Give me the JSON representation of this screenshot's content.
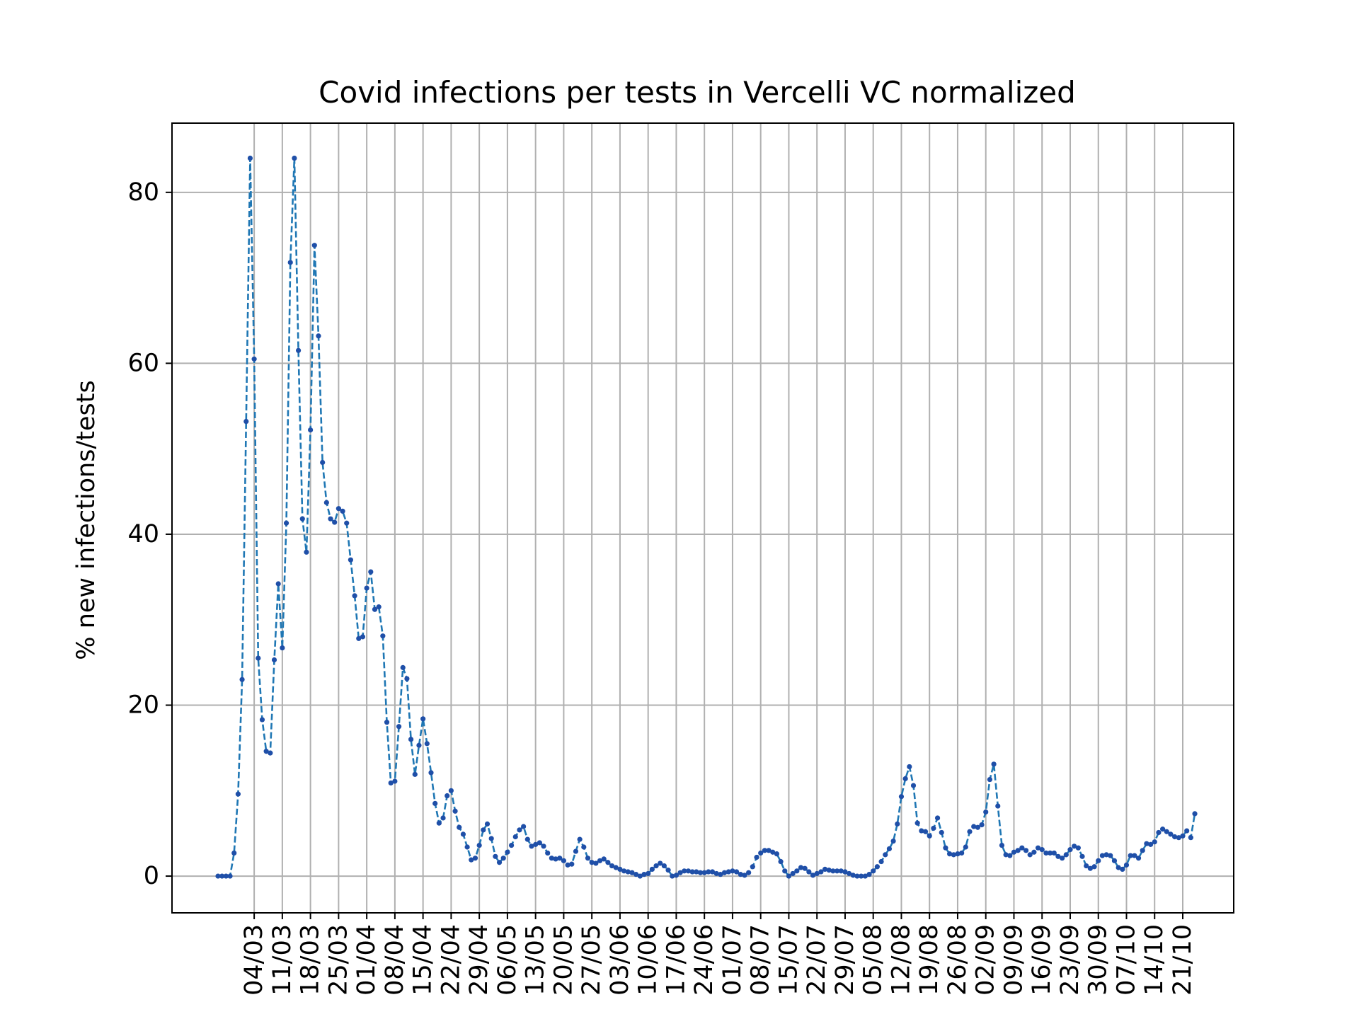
{
  "chart_data": {
    "type": "line",
    "title": "Covid infections per tests in Vercelli VC normalized",
    "xlabel": "",
    "ylabel": "% new infections/tests",
    "start_date": "2020-02-24",
    "ylim": [
      -4.3,
      88.1
    ],
    "yticks": [
      0,
      20,
      40,
      60,
      80
    ],
    "xtick_labels": [
      "04/03",
      "11/03",
      "18/03",
      "25/03",
      "01/04",
      "08/04",
      "15/04",
      "22/04",
      "29/04",
      "06/05",
      "13/05",
      "20/05",
      "27/05",
      "03/06",
      "10/06",
      "17/06",
      "24/06",
      "01/07",
      "08/07",
      "15/07",
      "22/07",
      "29/07",
      "05/08",
      "12/08",
      "19/08",
      "26/08",
      "02/09",
      "09/09",
      "16/09",
      "23/09",
      "30/09",
      "07/10",
      "14/10",
      "21/10"
    ],
    "grid": true,
    "line_style": "dashed",
    "marker": "dot",
    "colors": {
      "line": "#1f77b4",
      "marker": "#1f4fa8",
      "grid": "#b0b0b0"
    },
    "series": [
      {
        "values": [
          0,
          0,
          0,
          0,
          2.7,
          9.6,
          23,
          53.2,
          84,
          60.5,
          25.5,
          18.3,
          14.6,
          14.4,
          25.3,
          34.2,
          26.7,
          41.3,
          71.8,
          84,
          61.5,
          41.8,
          37.9,
          52.2,
          73.8,
          63.2,
          48.4,
          43.7,
          41.8,
          41.4,
          43,
          42.7,
          41.3,
          37,
          32.8,
          27.8,
          28,
          33.7,
          35.6,
          31.2,
          31.5,
          28.1,
          18,
          10.9,
          11.1,
          17.5,
          24.4,
          23.1,
          16,
          11.9,
          15.3,
          18.4,
          15.5,
          12.1,
          8.5,
          6.2,
          6.8,
          9.4,
          10,
          7.6,
          5.7,
          4.9,
          3.4,
          1.9,
          2.1,
          3.6,
          5.4,
          6.1,
          4.4,
          2.3,
          1.6,
          2.1,
          2.8,
          3.6,
          4.6,
          5.4,
          5.8,
          4.3,
          3.5,
          3.7,
          3.9,
          3.5,
          2.7,
          2.1,
          2,
          2.1,
          1.8,
          1.3,
          1.4,
          2.9,
          4.3,
          3.4,
          2.1,
          1.6,
          1.5,
          1.8,
          2,
          1.6,
          1.2,
          1,
          0.8,
          0.6,
          0.5,
          0.4,
          0.2,
          0,
          0.2,
          0.3,
          0.8,
          1.2,
          1.5,
          1.2,
          0.7,
          0,
          0.1,
          0.4,
          0.6,
          0.6,
          0.5,
          0.5,
          0.4,
          0.4,
          0.5,
          0.5,
          0.3,
          0.2,
          0.4,
          0.5,
          0.6,
          0.5,
          0.2,
          0.1,
          0.4,
          1.1,
          2.2,
          2.7,
          3,
          3,
          2.8,
          2.6,
          1.7,
          0.6,
          0,
          0.3,
          0.6,
          1,
          0.9,
          0.5,
          0.1,
          0.3,
          0.5,
          0.8,
          0.7,
          0.6,
          0.6,
          0.6,
          0.5,
          0.3,
          0.1,
          0,
          0,
          0,
          0.2,
          0.6,
          1.1,
          1.7,
          2.5,
          3.2,
          4.1,
          6.1,
          9.3,
          11.4,
          12.8,
          10.6,
          6.2,
          5.3,
          5.2,
          4.7,
          5.6,
          6.8,
          5.1,
          3.3,
          2.6,
          2.5,
          2.6,
          2.7,
          3.4,
          5.2,
          5.8,
          5.7,
          6,
          7.5,
          11.3,
          13.1,
          8.2,
          3.6,
          2.5,
          2.4,
          2.8,
          3,
          3.3,
          3,
          2.5,
          2.8,
          3.3,
          3.1,
          2.7,
          2.7,
          2.7,
          2.3,
          2.1,
          2.5,
          3.1,
          3.5,
          3.3,
          2.3,
          1.2,
          0.9,
          1.1,
          1.8,
          2.4,
          2.5,
          2.4,
          1.8,
          1,
          0.8,
          1.3,
          2.4,
          2.4,
          2.1,
          3,
          3.8,
          3.7,
          4,
          5.1,
          5.5,
          5.2,
          4.9,
          4.6,
          4.5,
          4.7,
          5.3,
          4.5,
          7.3
        ]
      }
    ]
  }
}
